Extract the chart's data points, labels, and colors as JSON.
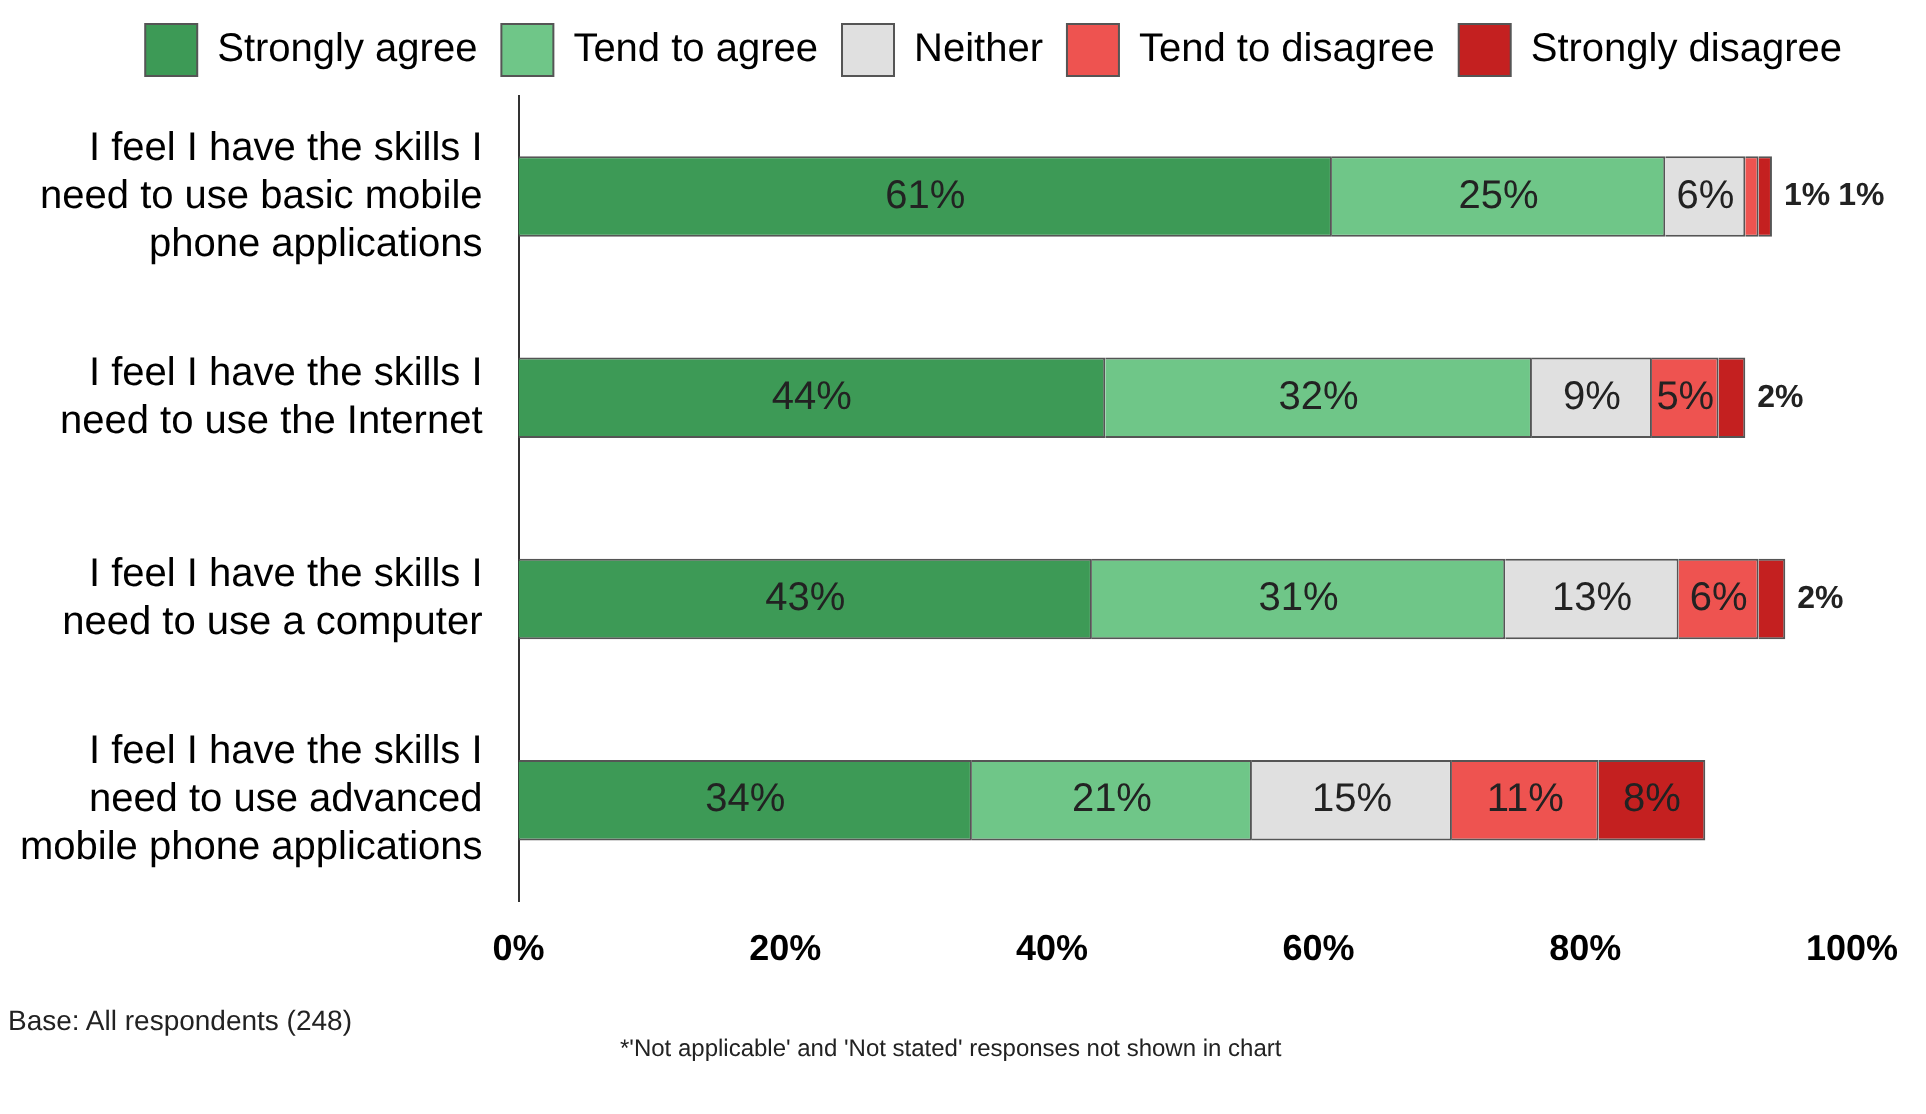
{
  "chart_data": {
    "type": "bar",
    "orientation": "horizontal",
    "stacked": true,
    "legend": "top",
    "grid": false,
    "categories": [
      "I feel I have the skills I need to use basic mobile phone applications",
      "I feel I have the skills I need to use the Internet",
      "I feel I have the skills I need to use a computer",
      "I feel I have the skills I need to use advanced mobile phone applications"
    ],
    "series": [
      {
        "name": "Strongly agree",
        "color": "#3d9a56",
        "values": [
          61,
          44,
          43,
          34
        ],
        "value_labels": [
          "61%",
          "44%",
          "43%",
          "34%"
        ]
      },
      {
        "name": "Tend to agree",
        "color": "#6fc688",
        "values": [
          25,
          32,
          31,
          21
        ],
        "value_labels": [
          "25%",
          "32%",
          "31%",
          "21%"
        ]
      },
      {
        "name": "Neither",
        "color": "#e0e0e0",
        "values": [
          6,
          9,
          13,
          15
        ],
        "value_labels": [
          "6%",
          "9%",
          "13%",
          "15%"
        ]
      },
      {
        "name": "Tend to disagree",
        "color": "#ee5350",
        "values": [
          1,
          5,
          6,
          11
        ],
        "value_labels": [
          "1%",
          "5%",
          "6%",
          "11%"
        ]
      },
      {
        "name": "Strongly disagree",
        "color": "#c42020",
        "values": [
          1,
          2,
          2,
          8
        ],
        "value_labels": [
          "1%",
          "2%",
          "2%",
          "8%"
        ]
      }
    ],
    "xlim": [
      0,
      100
    ],
    "xticks": [
      {
        "value": 0,
        "label": "0%"
      },
      {
        "value": 20,
        "label": "20%"
      },
      {
        "value": 40,
        "label": "40%"
      },
      {
        "value": 60,
        "label": "60%"
      },
      {
        "value": 80,
        "label": "80%"
      },
      {
        "value": 100,
        "label": "100%"
      }
    ],
    "annotations": [
      "Base: All respondents (248)",
      "*'Not applicable' and 'Not stated' responses not shown in chart"
    ]
  }
}
